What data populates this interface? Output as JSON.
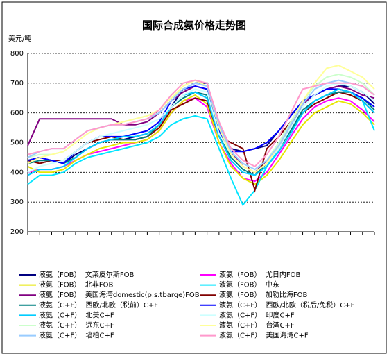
{
  "chart_data": {
    "type": "line",
    "title": "国际合成氨价格走势图",
    "y_label": "美元/吨",
    "categories": [
      null,
      null,
      null,
      null,
      null,
      null,
      null,
      null,
      null,
      null,
      null,
      null,
      null,
      null,
      null,
      null,
      null,
      null,
      null,
      null,
      null,
      null,
      null,
      null,
      null,
      null,
      null,
      null,
      null,
      null
    ],
    "ylim": [
      200,
      800
    ],
    "yticks": [
      200,
      300,
      400,
      500,
      600,
      700,
      800
    ],
    "grid": true,
    "series": [
      {
        "name": "液氨（FOB）  文莱皮尔斯FOB",
        "color": "#000080",
        "values": [
          440,
          450,
          440,
          430,
          460,
          480,
          500,
          510,
          510,
          520,
          530,
          560,
          620,
          680,
          700,
          700,
          560,
          480,
          470,
          480,
          490,
          540,
          590,
          640,
          660,
          680,
          690,
          690,
          670,
          630
        ]
      },
      {
        "name": "液氨（FOB）  尤日内FOB",
        "color": "#ff00ff",
        "values": [
          400,
          410,
          410,
          420,
          440,
          460,
          470,
          480,
          490,
          500,
          510,
          540,
          600,
          640,
          650,
          620,
          500,
          430,
          380,
          370,
          400,
          460,
          520,
          580,
          620,
          640,
          650,
          640,
          610,
          570
        ]
      },
      {
        "name": "液氨（FOB）  北非FOB",
        "color": "#e6e600",
        "values": [
          420,
          400,
          400,
          410,
          440,
          460,
          480,
          490,
          500,
          500,
          510,
          540,
          600,
          640,
          660,
          630,
          500,
          420,
          380,
          360,
          390,
          440,
          500,
          560,
          600,
          620,
          640,
          630,
          600,
          560
        ]
      },
      {
        "name": "液氨（FOB）  中东",
        "color": "#00e5ff",
        "values": [
          360,
          390,
          390,
          400,
          430,
          450,
          460,
          470,
          480,
          490,
          500,
          520,
          560,
          580,
          590,
          580,
          480,
          380,
          290,
          340,
          420,
          480,
          540,
          600,
          640,
          660,
          680,
          670,
          640,
          540
        ]
      },
      {
        "name": "液氨（FOB）  美国海湾domestic(p.s.tbarge)FOB",
        "color": "#800080",
        "values": [
          490,
          580,
          580,
          580,
          580,
          580,
          580,
          580,
          560,
          560,
          570,
          600,
          640,
          670,
          690,
          680,
          520,
          470,
          420,
          400,
          440,
          490,
          550,
          630,
          660,
          680,
          690,
          680,
          660,
          650
        ]
      },
      {
        "name": "液氨（FOB）  加勒比海FOB",
        "color": "#800000",
        "values": [
          440,
          430,
          440,
          440,
          470,
          500,
          510,
          520,
          510,
          510,
          520,
          550,
          610,
          630,
          650,
          640,
          520,
          500,
          480,
          340,
          480,
          520,
          570,
          600,
          630,
          650,
          670,
          660,
          640,
          600
        ]
      },
      {
        "name": "液氨（C+F）  西欧/北欧（税前）C+F",
        "color": "#008080",
        "values": [
          430,
          440,
          440,
          430,
          450,
          480,
          500,
          510,
          510,
          510,
          520,
          560,
          620,
          650,
          670,
          660,
          530,
          450,
          410,
          390,
          430,
          480,
          540,
          610,
          640,
          660,
          670,
          670,
          650,
          610
        ]
      },
      {
        "name": "液氨（C+F）  西欧/北欧（税后/免税）C+F",
        "color": "#0000ff",
        "values": [
          440,
          450,
          440,
          430,
          470,
          500,
          520,
          520,
          520,
          530,
          540,
          570,
          640,
          680,
          690,
          680,
          540,
          470,
          470,
          480,
          500,
          540,
          590,
          640,
          660,
          680,
          680,
          670,
          650,
          620
        ]
      },
      {
        "name": "液氨（C+F）  北美C+F",
        "color": "#00ccff",
        "values": [
          390,
          410,
          410,
          420,
          450,
          480,
          500,
          510,
          520,
          520,
          530,
          560,
          620,
          660,
          670,
          650,
          520,
          440,
          400,
          390,
          420,
          470,
          530,
          600,
          640,
          660,
          680,
          670,
          640,
          600
        ]
      },
      {
        "name": "液氨（C+F）  印度C+F",
        "color": "#ccffff",
        "values": [
          400,
          420,
          430,
          440,
          470,
          500,
          520,
          530,
          540,
          550,
          560,
          580,
          620,
          660,
          680,
          670,
          530,
          460,
          420,
          400,
          430,
          480,
          550,
          620,
          660,
          690,
          700,
          690,
          670,
          640
        ]
      },
      {
        "name": "液氨（C+F）  远东C+F",
        "color": "#ccffcc",
        "values": [
          450,
          460,
          460,
          470,
          500,
          530,
          550,
          560,
          570,
          580,
          590,
          610,
          650,
          680,
          700,
          690,
          560,
          470,
          430,
          410,
          440,
          500,
          570,
          640,
          690,
          720,
          730,
          720,
          700,
          660
        ]
      },
      {
        "name": "液氨（C+F）  台湾C+F",
        "color": "#ffff99",
        "values": [
          430,
          450,
          460,
          470,
          500,
          530,
          550,
          560,
          570,
          580,
          590,
          610,
          650,
          690,
          710,
          690,
          550,
          460,
          420,
          400,
          430,
          490,
          560,
          640,
          700,
          750,
          760,
          740,
          720,
          680
        ]
      },
      {
        "name": "液氨（C+F）  墙柏C+F",
        "color": "#99ccff",
        "values": [
          450,
          470,
          480,
          480,
          510,
          540,
          550,
          560,
          560,
          570,
          580,
          600,
          640,
          680,
          700,
          690,
          560,
          470,
          430,
          410,
          440,
          490,
          560,
          630,
          680,
          700,
          710,
          700,
          690,
          660
        ]
      },
      {
        "name": "液氨（C+F）  美国海湾C+F",
        "color": "#ff99cc",
        "values": [
          460,
          470,
          480,
          480,
          510,
          540,
          550,
          560,
          560,
          570,
          580,
          610,
          660,
          700,
          710,
          700,
          570,
          480,
          440,
          420,
          460,
          520,
          600,
          680,
          690,
          700,
          700,
          700,
          690,
          660
        ]
      }
    ]
  }
}
